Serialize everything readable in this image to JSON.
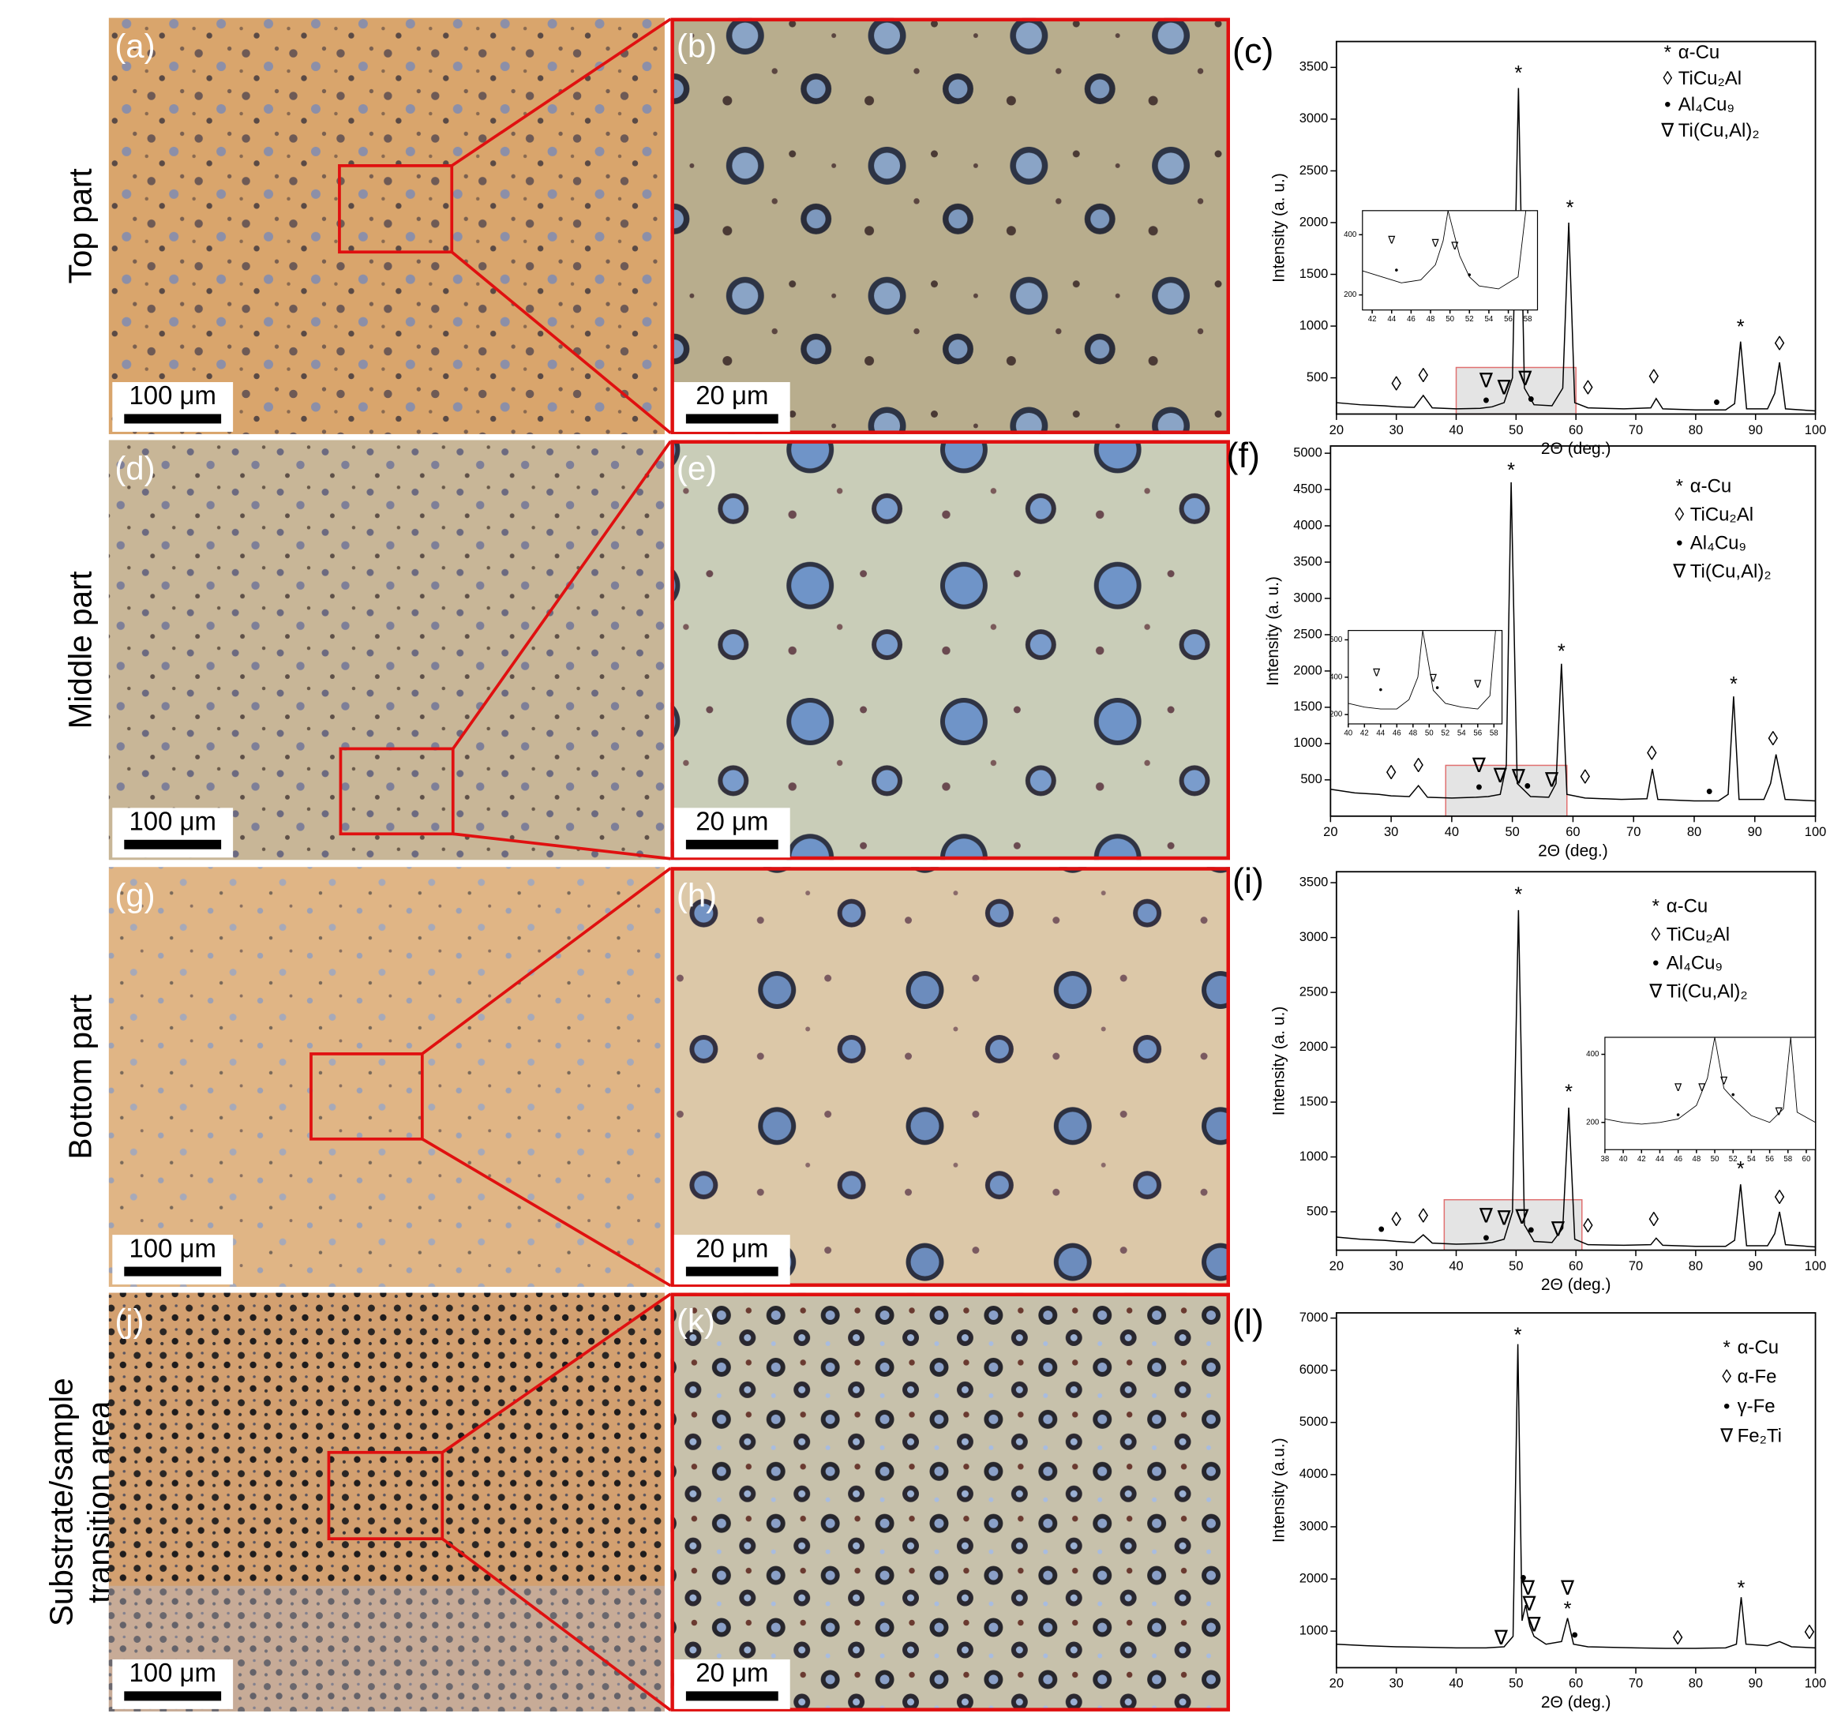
{
  "rows": [
    {
      "lines": [
        "Top part"
      ]
    },
    {
      "lines": [
        "Middle part"
      ]
    },
    {
      "lines": [
        "Bottom part"
      ]
    },
    {
      "lines": [
        "Substrate/sample",
        "transition area"
      ]
    }
  ],
  "micrographs": [
    {
      "label": "(a)",
      "scale_bar": "100 μm"
    },
    {
      "label": "(b)",
      "scale_bar": "20 μm"
    },
    {
      "label": "(d)",
      "scale_bar": "100 μm"
    },
    {
      "label": "(e)",
      "scale_bar": "20 μm"
    },
    {
      "label": "(g)",
      "scale_bar": "100 μm"
    },
    {
      "label": "(h)",
      "scale_bar": "20 μm"
    },
    {
      "label": "(j)",
      "scale_bar": "100 μm"
    },
    {
      "label": "(k)",
      "scale_bar": "20 μm"
    }
  ],
  "chart_data": [
    {
      "type": "line",
      "panel_label": "(c)",
      "xlabel": "2Θ (deg.)",
      "ylabel": "Intensity (a. u.)",
      "color": "#000000",
      "x": [
        20,
        24,
        28,
        30,
        33,
        34.5,
        36,
        40,
        44,
        46,
        48,
        49.4,
        50.4,
        51.4,
        53,
        56,
        57.8,
        58.8,
        59.8,
        62,
        68,
        72.5,
        73.4,
        74.5,
        80,
        85,
        86.5,
        87.5,
        88.5,
        92,
        93.2,
        94,
        95,
        100
      ],
      "values": [
        260,
        240,
        230,
        220,
        215,
        330,
        210,
        200,
        205,
        220,
        260,
        500,
        3300,
        400,
        240,
        230,
        400,
        2000,
        260,
        210,
        200,
        210,
        300,
        200,
        190,
        190,
        250,
        850,
        200,
        200,
        350,
        650,
        200,
        180
      ],
      "xlim": [
        20,
        100
      ],
      "ylim": [
        150,
        3750
      ],
      "xticks": [
        20,
        30,
        40,
        50,
        60,
        70,
        80,
        90,
        100
      ],
      "yticks": [
        500,
        1000,
        1500,
        2000,
        2500,
        3000,
        3500
      ],
      "legend": [
        {
          "symbol": "*",
          "label": "α-Cu"
        },
        {
          "symbol": "◊",
          "label": "TiCu₂Al"
        },
        {
          "symbol": "•",
          "label": "Al₄Cu₉"
        },
        {
          "symbol": "∇",
          "label": "Ti(Cu,Al)₂"
        }
      ],
      "annotations": [
        {
          "x": 50.4,
          "y": 3430,
          "text": "*"
        },
        {
          "x": 59,
          "y": 2130,
          "text": "*"
        },
        {
          "x": 87.5,
          "y": 980,
          "text": "*"
        },
        {
          "x": 30,
          "y": 430,
          "text": "◊"
        },
        {
          "x": 34.5,
          "y": 510,
          "text": "◊"
        },
        {
          "x": 62,
          "y": 390,
          "text": "◊"
        },
        {
          "x": 73,
          "y": 500,
          "text": "◊"
        },
        {
          "x": 94,
          "y": 820,
          "text": "◊"
        },
        {
          "x": 45,
          "y": 270,
          "text": "•"
        },
        {
          "x": 52.5,
          "y": 280,
          "text": "•"
        },
        {
          "x": 83.5,
          "y": 250,
          "text": "•"
        },
        {
          "x": 45,
          "y": 460,
          "text": "∇"
        },
        {
          "x": 48,
          "y": 390,
          "text": "∇"
        },
        {
          "x": 51.5,
          "y": 480,
          "text": "∇"
        }
      ],
      "highlight": {
        "xlim": [
          40,
          60
        ],
        "ylim": [
          150,
          600
        ]
      },
      "inset": {
        "xlim": [
          41,
          59
        ],
        "ylim": [
          150,
          480
        ],
        "xticks": [
          42,
          44,
          46,
          48,
          50,
          52,
          54,
          56,
          58
        ],
        "yticks": [
          200,
          400
        ],
        "x": [
          41,
          43,
          45,
          47,
          48.5,
          49.3,
          49.8,
          51,
          52,
          53,
          55,
          57,
          57.8,
          58.3
        ],
        "values": [
          280,
          260,
          240,
          250,
          300,
          380,
          480,
          330,
          260,
          230,
          220,
          260,
          480,
          480
        ],
        "annotations": [
          {
            "x": 44,
            "y": 380,
            "text": "∇"
          },
          {
            "x": 48.5,
            "y": 370,
            "text": "∇"
          },
          {
            "x": 50.5,
            "y": 360,
            "text": "∇"
          },
          {
            "x": 44.5,
            "y": 280,
            "text": "•"
          },
          {
            "x": 52,
            "y": 265,
            "text": "•"
          }
        ]
      }
    },
    {
      "type": "line",
      "panel_label": "(f)",
      "xlabel": "2Θ (deg.)",
      "ylabel": "Intensity (a. u.)",
      "color": "#000000",
      "x": [
        20,
        24,
        28,
        30,
        33,
        34.5,
        36,
        40,
        44,
        46,
        48,
        49,
        49.8,
        50.8,
        53,
        56,
        57.2,
        58.1,
        59,
        62,
        68,
        72.2,
        73.1,
        74,
        80,
        84,
        85.6,
        86.5,
        87.4,
        91.5,
        92.6,
        93.5,
        95,
        100
      ],
      "values": [
        370,
        320,
        300,
        280,
        270,
        420,
        260,
        250,
        260,
        270,
        300,
        700,
        4600,
        450,
        270,
        260,
        450,
        2100,
        300,
        250,
        230,
        240,
        650,
        230,
        210,
        210,
        300,
        1650,
        230,
        230,
        450,
        850,
        230,
        210
      ],
      "xlim": [
        20,
        100
      ],
      "ylim": [
        0,
        5100
      ],
      "xticks": [
        20,
        30,
        40,
        50,
        60,
        70,
        80,
        90,
        100
      ],
      "yticks": [
        500,
        1000,
        1500,
        2000,
        2500,
        3000,
        3500,
        4000,
        4500,
        5000
      ],
      "legend": [
        {
          "symbol": "*",
          "label": "α-Cu"
        },
        {
          "symbol": "◊",
          "label": "TiCu₂Al"
        },
        {
          "symbol": "•",
          "label": "Al₄Cu₉"
        },
        {
          "symbol": "∇",
          "label": "Ti(Cu,Al)₂"
        }
      ],
      "annotations": [
        {
          "x": 49.8,
          "y": 4750,
          "text": "*"
        },
        {
          "x": 58.1,
          "y": 2250,
          "text": "*"
        },
        {
          "x": 86.5,
          "y": 1800,
          "text": "*"
        },
        {
          "x": 30,
          "y": 580,
          "text": "◊"
        },
        {
          "x": 34.5,
          "y": 680,
          "text": "◊"
        },
        {
          "x": 62,
          "y": 520,
          "text": "◊"
        },
        {
          "x": 73,
          "y": 850,
          "text": "◊"
        },
        {
          "x": 93,
          "y": 1050,
          "text": "◊"
        },
        {
          "x": 44.5,
          "y": 380,
          "text": "•"
        },
        {
          "x": 52.5,
          "y": 400,
          "text": "•"
        },
        {
          "x": 82.5,
          "y": 320,
          "text": "•"
        },
        {
          "x": 44.5,
          "y": 680,
          "text": "∇"
        },
        {
          "x": 48,
          "y": 540,
          "text": "∇"
        },
        {
          "x": 51,
          "y": 520,
          "text": "∇"
        },
        {
          "x": 56.5,
          "y": 480,
          "text": "∇"
        }
      ],
      "highlight": {
        "xlim": [
          39,
          59
        ],
        "ylim": [
          0,
          700
        ]
      },
      "inset": {
        "xlim": [
          40,
          59
        ],
        "ylim": [
          150,
          650
        ],
        "xticks": [
          40,
          42,
          44,
          46,
          48,
          50,
          52,
          54,
          56,
          58
        ],
        "yticks": [
          200,
          400,
          600
        ],
        "x": [
          40,
          42,
          44,
          46,
          47.5,
          48.6,
          49.2,
          50.5,
          52,
          54,
          56,
          57.5,
          58.2
        ],
        "values": [
          260,
          240,
          230,
          230,
          280,
          400,
          650,
          330,
          260,
          240,
          230,
          300,
          650
        ],
        "annotations": [
          {
            "x": 43.5,
            "y": 420,
            "text": "∇"
          },
          {
            "x": 50.5,
            "y": 390,
            "text": "∇"
          },
          {
            "x": 56,
            "y": 360,
            "text": "∇"
          },
          {
            "x": 44,
            "y": 330,
            "text": "•"
          },
          {
            "x": 51,
            "y": 340,
            "text": "•"
          }
        ]
      }
    },
    {
      "type": "line",
      "panel_label": "(i)",
      "xlabel": "2Θ (deg.)",
      "ylabel": "Intensity (a. u.)",
      "color": "#000000",
      "x": [
        20,
        24,
        28,
        30,
        33,
        34.5,
        36,
        40,
        44,
        46,
        48,
        49.4,
        50.4,
        51.4,
        53,
        56,
        57.8,
        58.8,
        59.8,
        62,
        68,
        72.5,
        73.4,
        74.5,
        80,
        85,
        86.5,
        87.5,
        88.5,
        92,
        93.2,
        94,
        95,
        100
      ],
      "values": [
        270,
        250,
        240,
        230,
        220,
        290,
        215,
        205,
        210,
        220,
        250,
        500,
        3250,
        380,
        230,
        220,
        350,
        1450,
        250,
        200,
        195,
        200,
        260,
        195,
        185,
        185,
        240,
        750,
        190,
        190,
        300,
        500,
        200,
        180
      ],
      "xlim": [
        20,
        100
      ],
      "ylim": [
        150,
        3600
      ],
      "xticks": [
        20,
        30,
        40,
        50,
        60,
        70,
        80,
        90,
        100
      ],
      "yticks": [
        500,
        1000,
        1500,
        2000,
        2500,
        3000,
        3500
      ],
      "legend": [
        {
          "symbol": "*",
          "label": "α-Cu"
        },
        {
          "symbol": "◊",
          "label": "TiCu₂Al"
        },
        {
          "symbol": "•",
          "label": "Al₄Cu₉"
        },
        {
          "symbol": "∇",
          "label": "Ti(Cu,Al)₂"
        }
      ],
      "annotations": [
        {
          "x": 50.4,
          "y": 3380,
          "text": "*"
        },
        {
          "x": 58.8,
          "y": 1580,
          "text": "*"
        },
        {
          "x": 87.5,
          "y": 880,
          "text": "*"
        },
        {
          "x": 30,
          "y": 420,
          "text": "◊"
        },
        {
          "x": 34.5,
          "y": 450,
          "text": "◊"
        },
        {
          "x": 62,
          "y": 360,
          "text": "◊"
        },
        {
          "x": 73,
          "y": 420,
          "text": "◊"
        },
        {
          "x": 94,
          "y": 620,
          "text": "◊"
        },
        {
          "x": 27.5,
          "y": 330,
          "text": "•"
        },
        {
          "x": 45,
          "y": 250,
          "text": "•"
        },
        {
          "x": 52.5,
          "y": 320,
          "text": "•"
        },
        {
          "x": 45,
          "y": 450,
          "text": "∇"
        },
        {
          "x": 48,
          "y": 430,
          "text": "∇"
        },
        {
          "x": 51,
          "y": 440,
          "text": "∇"
        },
        {
          "x": 57,
          "y": 330,
          "text": "∇"
        }
      ],
      "highlight": {
        "xlim": [
          38,
          61
        ],
        "ylim": [
          150,
          610
        ]
      },
      "inset": {
        "xlim": [
          38,
          61
        ],
        "ylim": [
          120,
          450
        ],
        "xticks": [
          38,
          40,
          42,
          44,
          46,
          48,
          50,
          52,
          54,
          56,
          58,
          60
        ],
        "yticks": [
          200,
          400
        ],
        "x": [
          38,
          40,
          42,
          44,
          46,
          48,
          49.2,
          50,
          51,
          52,
          54,
          56,
          57.5,
          58.3,
          59,
          61
        ],
        "values": [
          210,
          200,
          195,
          200,
          210,
          250,
          330,
          450,
          300,
          270,
          220,
          200,
          240,
          450,
          230,
          200
        ],
        "annotations": [
          {
            "x": 46,
            "y": 300,
            "text": "∇"
          },
          {
            "x": 48.6,
            "y": 300,
            "text": "∇"
          },
          {
            "x": 51,
            "y": 320,
            "text": "∇"
          },
          {
            "x": 57,
            "y": 230,
            "text": "∇"
          },
          {
            "x": 46,
            "y": 220,
            "text": "•"
          },
          {
            "x": 52,
            "y": 280,
            "text": "•"
          }
        ]
      }
    },
    {
      "type": "line",
      "panel_label": "(l)",
      "xlabel": "2Θ (deg.)",
      "ylabel": "Intensity (a.u.)",
      "color": "#000000",
      "x": [
        20,
        25,
        30,
        35,
        40,
        45,
        48,
        49.5,
        50.3,
        51,
        51.6,
        52.3,
        53,
        55,
        57.6,
        58.6,
        59.6,
        62,
        70,
        75,
        80,
        85,
        86.8,
        87.6,
        88.4,
        92,
        94,
        96,
        100
      ],
      "values": [
        750,
        720,
        700,
        690,
        680,
        680,
        700,
        900,
        6500,
        1200,
        1500,
        1100,
        900,
        750,
        800,
        1250,
        750,
        700,
        680,
        670,
        670,
        680,
        750,
        1650,
        750,
        720,
        800,
        700,
        680
      ],
      "xlim": [
        20,
        100
      ],
      "ylim": [
        300,
        7100
      ],
      "xticks": [
        20,
        30,
        40,
        50,
        60,
        70,
        80,
        90,
        100
      ],
      "yticks": [
        1000,
        2000,
        3000,
        4000,
        5000,
        6000,
        7000
      ],
      "legend": [
        {
          "symbol": "*",
          "label": "α-Cu"
        },
        {
          "symbol": "◊",
          "label": "α-Fe"
        },
        {
          "symbol": "•",
          "label": "γ-Fe"
        },
        {
          "symbol": "∇",
          "label": "Fe₂Ti"
        }
      ],
      "annotations": [
        {
          "x": 50.3,
          "y": 6650,
          "text": "*"
        },
        {
          "x": 58.6,
          "y": 1400,
          "text": "*"
        },
        {
          "x": 87.6,
          "y": 1800,
          "text": "*"
        },
        {
          "x": 77,
          "y": 850,
          "text": "◊"
        },
        {
          "x": 99,
          "y": 950,
          "text": "◊"
        },
        {
          "x": 51.2,
          "y": 2000,
          "text": "•"
        },
        {
          "x": 59.8,
          "y": 900,
          "text": "•"
        },
        {
          "x": 47.5,
          "y": 850,
          "text": "∇"
        },
        {
          "x": 52,
          "y": 1800,
          "text": "∇"
        },
        {
          "x": 52.2,
          "y": 1500,
          "text": "∇"
        },
        {
          "x": 53,
          "y": 1100,
          "text": "∇"
        },
        {
          "x": 58.6,
          "y": 1800,
          "text": "∇"
        }
      ]
    }
  ]
}
